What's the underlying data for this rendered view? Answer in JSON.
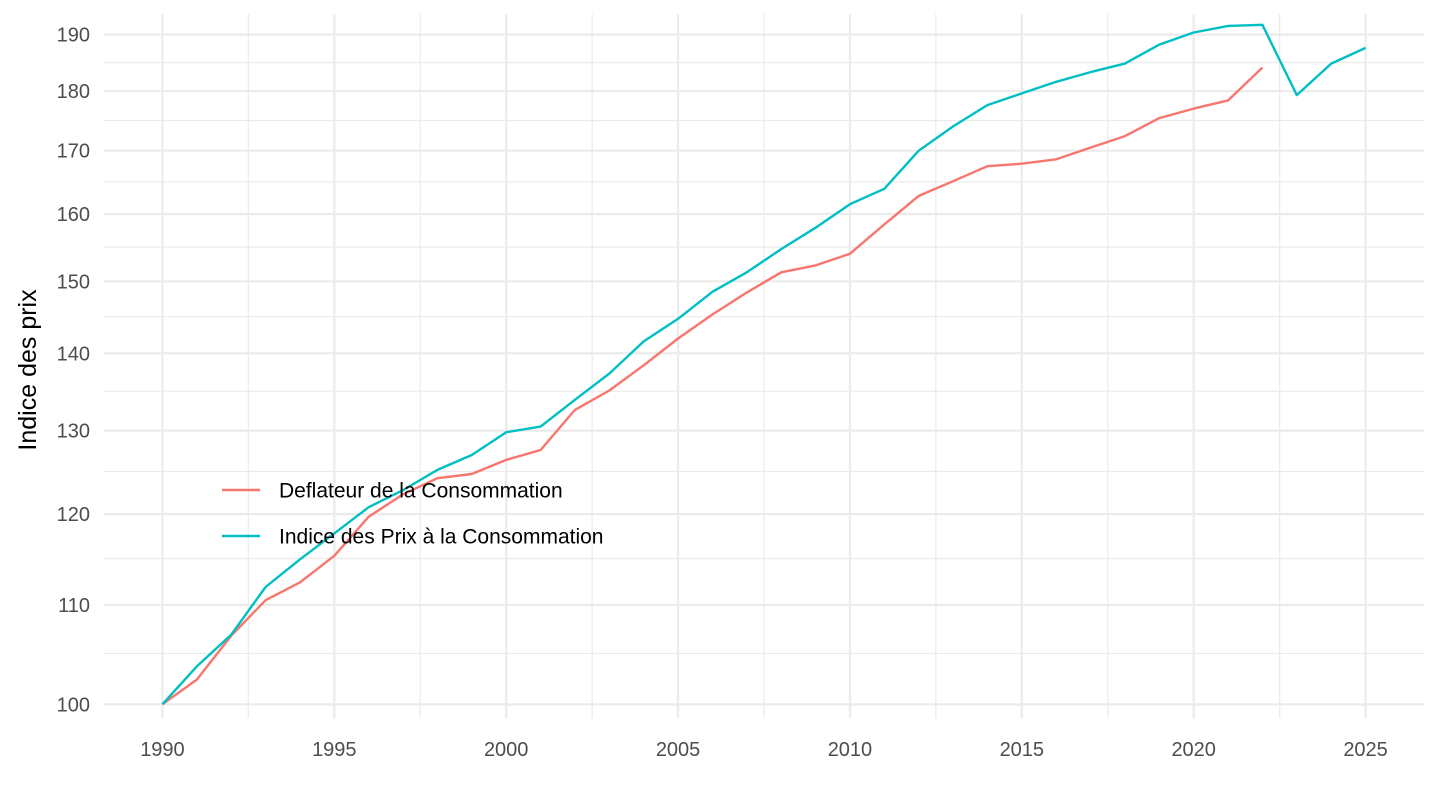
{
  "chart_data": {
    "type": "line",
    "title": "",
    "xlabel": "",
    "ylabel": "Indice des prix",
    "y_scale": "log",
    "xlim": [
      1988.3,
      2026.7
    ],
    "ylim": [
      98.7,
      193.8
    ],
    "x_ticks": [
      1990,
      1995,
      2000,
      2005,
      2010,
      2015,
      2020,
      2025
    ],
    "y_ticks": [
      100,
      110,
      120,
      130,
      140,
      150,
      160,
      170,
      180,
      190
    ],
    "grid": true,
    "legend_position": "inside-left",
    "series": [
      {
        "name": "Deflateur de la Consommation",
        "color": "#F8766D",
        "x": [
          1990,
          1991,
          1992,
          1993,
          1994,
          1995,
          1996,
          1997,
          1998,
          1999,
          2000,
          2001,
          2002,
          2003,
          2004,
          2005,
          2006,
          2007,
          2008,
          2009,
          2010,
          2011,
          2012,
          2013,
          2014,
          2015,
          2016,
          2017,
          2018,
          2019,
          2020,
          2021,
          2022
        ],
        "values": [
          100,
          102.4,
          106.8,
          110.5,
          112.4,
          115.3,
          119.7,
          122.3,
          124.2,
          124.7,
          126.4,
          127.6,
          132.6,
          135.1,
          138.4,
          142.0,
          145.3,
          148.4,
          151.3,
          152.3,
          154.0,
          158.4,
          162.8,
          165.1,
          167.5,
          167.9,
          168.6,
          170.5,
          172.4,
          175.4,
          177.0,
          178.4,
          184.1
        ]
      },
      {
        "name": "Indice des Prix à la Consommation",
        "color": "#00BFC4",
        "x": [
          1990,
          1991,
          1992,
          1993,
          1994,
          1995,
          1996,
          1997,
          1998,
          1999,
          2000,
          2001,
          2002,
          2003,
          2004,
          2005,
          2006,
          2007,
          2008,
          2009,
          2010,
          2011,
          2012,
          2013,
          2014,
          2015,
          2016,
          2017,
          2018,
          2019,
          2020,
          2021,
          2022,
          2023,
          2024,
          2025
        ],
        "values": [
          100,
          103.7,
          106.9,
          111.9,
          114.9,
          117.8,
          120.8,
          122.8,
          125.2,
          127.0,
          129.8,
          130.5,
          133.9,
          137.3,
          141.6,
          144.7,
          148.5,
          151.3,
          154.7,
          157.9,
          161.5,
          163.9,
          170.0,
          174.0,
          177.6,
          179.6,
          181.6,
          183.3,
          184.8,
          188.2,
          190.4,
          191.6,
          191.8,
          179.3,
          184.8,
          187.6
        ]
      }
    ]
  }
}
